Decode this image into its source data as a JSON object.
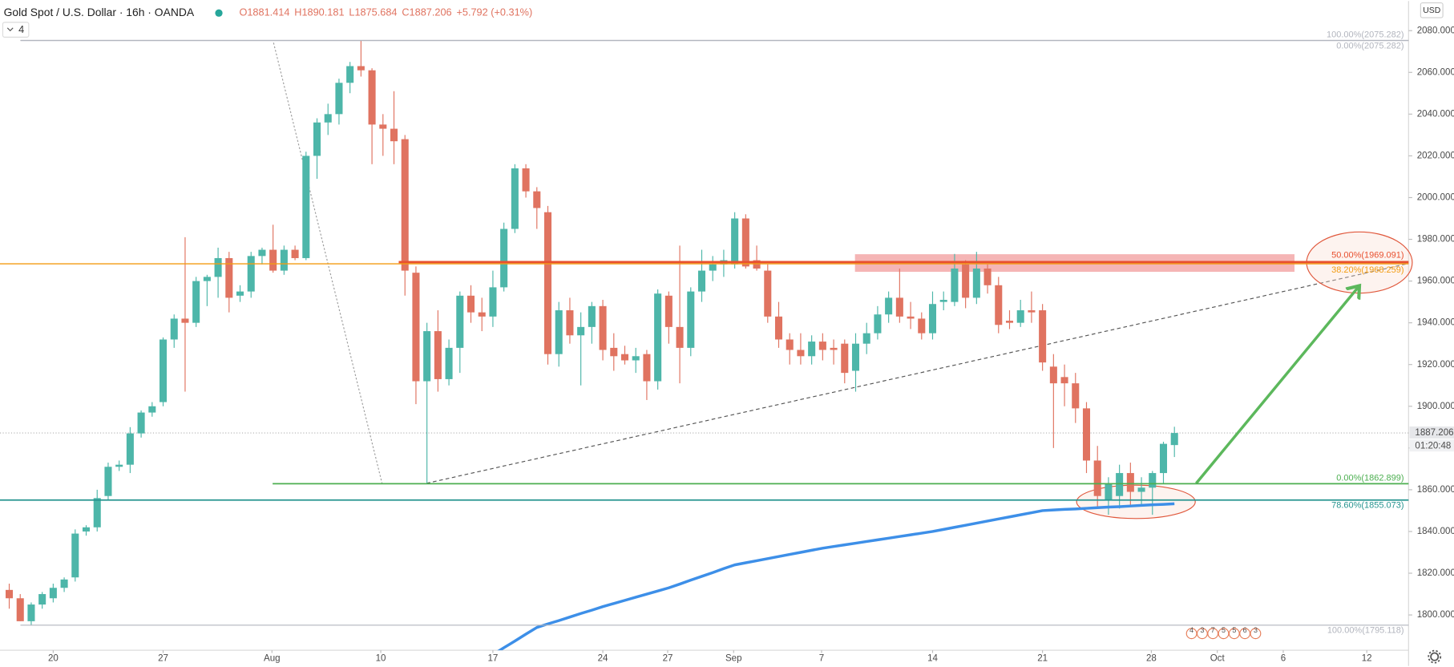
{
  "header": {
    "symbol": "Gold Spot / U.S. Dollar · 16h · OANDA",
    "ohlc": [
      "O1881.414",
      "H1890.181",
      "L1875.684",
      "C1887.206",
      "+5.792 (+0.31%)"
    ],
    "indicators": "4",
    "currency": "USD",
    "countdown": "01:20:48"
  },
  "chart_data": {
    "type": "candlestick",
    "up_color": "#4db6a9",
    "down_color": "#e07360",
    "xlim": [
      -0.84,
      127.3
    ],
    "ylim": [
      1783.1,
      2094.2
    ],
    "grid": false,
    "xticks": [
      {
        "value": 4,
        "label": "20"
      },
      {
        "value": 14,
        "label": "27"
      },
      {
        "value": 23.9,
        "label": "Aug"
      },
      {
        "value": 33.8,
        "label": "10"
      },
      {
        "value": 44,
        "label": "17"
      },
      {
        "value": 54,
        "label": "24"
      },
      {
        "value": 59.9,
        "label": "27"
      },
      {
        "value": 65.9,
        "label": "Sep"
      },
      {
        "value": 73.9,
        "label": "7"
      },
      {
        "value": 84,
        "label": "14"
      },
      {
        "value": 94,
        "label": "21"
      },
      {
        "value": 103.9,
        "label": "28"
      },
      {
        "value": 109.9,
        "label": "Oct"
      },
      {
        "value": 115.9,
        "label": "6"
      },
      {
        "value": 123.5,
        "label": "12"
      }
    ],
    "yticks": [
      {
        "value": 1800,
        "label": "1800.000"
      },
      {
        "value": 1820,
        "label": "1820.000"
      },
      {
        "value": 1840,
        "label": "1840.000"
      },
      {
        "value": 1860,
        "label": "1860.000"
      },
      {
        "value": 1880,
        "label": "1880.000"
      },
      {
        "value": 1900,
        "label": "1900.000"
      },
      {
        "value": 1920,
        "label": "1920.000"
      },
      {
        "value": 1940,
        "label": "1940.000"
      },
      {
        "value": 1960,
        "label": "1960.000"
      },
      {
        "value": 1980,
        "label": "1980.000"
      },
      {
        "value": 2000,
        "label": "2000.000"
      },
      {
        "value": 2020,
        "label": "2020.000"
      },
      {
        "value": 2040,
        "label": "2040.000"
      },
      {
        "value": 2060,
        "label": "2060.000"
      },
      {
        "value": 2080,
        "label": "2080.000"
      }
    ],
    "open": [
      1812,
      1808,
      1797,
      1805,
      1808,
      1813,
      1818,
      1840,
      1842,
      1857,
      1871,
      1872,
      1887,
      1897,
      1902,
      1932,
      1942,
      1940,
      1960,
      1962,
      1971,
      1953,
      1955,
      1972,
      1975,
      1965,
      1975,
      1971,
      2020,
      2036,
      2040,
      2055,
      2063,
      2061,
      2035,
      2033,
      2028,
      1964,
      1912,
      1936,
      1913,
      1928,
      1953,
      1945,
      1943,
      1957,
      1985,
      2014,
      2003,
      1993,
      1925,
      1946,
      1934,
      1938,
      1948,
      1928,
      1925,
      1922,
      1925,
      1912,
      1953,
      1938,
      1928,
      1955,
      1965,
      1968,
      1968,
      1990,
      1970,
      1965,
      1943,
      1932,
      1927,
      1924,
      1931,
      1928,
      1930,
      1917,
      1930,
      1935,
      1944,
      1952,
      1943,
      1942,
      1935,
      1950,
      1950,
      1968,
      1952,
      1966,
      1958,
      1941,
      1940,
      1946,
      1946,
      1919,
      1914,
      1911,
      1899,
      1874,
      1855,
      1857,
      1868,
      1859,
      1861,
      1868,
      1881.414
    ],
    "high": [
      1815,
      1810,
      1806,
      1811,
      1815,
      1818,
      1841,
      1843,
      1860,
      1873,
      1874,
      1890,
      1898,
      1902,
      1933,
      1944,
      1981,
      1962,
      1963,
      1976,
      1974,
      1958,
      1974,
      1976,
      1987,
      1977,
      1977,
      2022,
      2038,
      2045,
      2057,
      2065,
      2075.3,
      2062,
      2040,
      2051,
      2030,
      1967,
      1940,
      1946,
      1932,
      1955,
      1958,
      1952,
      1965,
      1988,
      2016,
      2016,
      2005,
      1996,
      1950,
      1952,
      1945,
      1950,
      1951,
      1935,
      1929,
      1928,
      1927,
      1956,
      1955,
      1977,
      1957,
      1975,
      1972,
      1975,
      1993,
      1992,
      1977,
      1968,
      1950,
      1935,
      1935,
      1934,
      1935,
      1932,
      1932,
      1935,
      1940,
      1948,
      1955,
      1966,
      1950,
      1945,
      1955,
      1955,
      1973,
      1970,
      1974,
      1968,
      1962,
      1946,
      1951,
      1955,
      1949,
      1925,
      1920,
      1916,
      1902,
      1881,
      1866,
      1872,
      1873,
      1866,
      1869,
      1883,
      1890.181
    ],
    "low": [
      1803,
      1797,
      1795,
      1803,
      1806,
      1811,
      1816,
      1838,
      1840,
      1855,
      1869,
      1868,
      1885,
      1895,
      1900,
      1928,
      1907,
      1938,
      1948,
      1952,
      1945,
      1950,
      1952,
      1968,
      1964,
      1963,
      1970,
      1970,
      2009,
      2030,
      2035,
      2050,
      2058,
      2016,
      2020,
      2016,
      1953,
      1901,
      1862.9,
      1907,
      1910,
      1916,
      1940,
      1936,
      1938,
      1955,
      1983,
      2000,
      1985,
      1920,
      1919,
      1930,
      1910,
      1930,
      1922,
      1917,
      1920,
      1916,
      1903,
      1908,
      1930,
      1911,
      1924,
      1950,
      1960,
      1962,
      1966,
      1966,
      1965,
      1940,
      1928,
      1920,
      1920,
      1920,
      1922,
      1920,
      1911,
      1907,
      1925,
      1932,
      1940,
      1940,
      1937,
      1932,
      1932,
      1946,
      1948,
      1947,
      1949,
      1954,
      1935,
      1937,
      1938,
      1940,
      1917,
      1880,
      1900,
      1892,
      1868,
      1851,
      1848,
      1851,
      1852,
      1853,
      1848,
      1863,
      1875.684
    ],
    "close": [
      1808,
      1797,
      1805,
      1810,
      1813,
      1817,
      1839,
      1842,
      1856,
      1871,
      1872,
      1887,
      1897,
      1900,
      1932,
      1942,
      1940,
      1960,
      1962,
      1971,
      1952,
      1955,
      1972,
      1975,
      1965,
      1975,
      1971,
      2020,
      2036,
      2040,
      2055,
      2063,
      2061,
      2035,
      2033,
      2027,
      1965,
      1912,
      1936,
      1913,
      1928,
      1953,
      1945,
      1943,
      1957,
      1985,
      2014,
      2003,
      1995,
      1925,
      1946,
      1934,
      1938,
      1948,
      1927,
      1924,
      1922,
      1924,
      1912,
      1954,
      1938,
      1928,
      1955,
      1965,
      1968,
      1970,
      1990,
      1967,
      1966,
      1943,
      1932,
      1927,
      1924,
      1931,
      1927,
      1927,
      1916,
      1930,
      1935,
      1944,
      1952,
      1943,
      1942,
      1935,
      1949,
      1951,
      1966,
      1952,
      1966,
      1958,
      1939,
      1940,
      1946,
      1945,
      1921,
      1911,
      1911,
      1899,
      1874,
      1857,
      1863,
      1868,
      1859,
      1861,
      1868,
      1882,
      1887.206
    ],
    "ma": {
      "color": "#3d8fe8",
      "values": [
        null,
        null,
        null,
        null,
        null,
        null,
        null,
        null,
        null,
        null,
        null,
        null,
        null,
        null,
        null,
        null,
        null,
        null,
        null,
        null,
        null,
        null,
        null,
        null,
        null,
        null,
        null,
        null,
        null,
        null,
        null,
        null,
        null,
        null,
        null,
        null,
        null,
        null,
        null,
        null,
        null,
        null,
        null,
        null,
        1781,
        1784.3,
        1787.5,
        1790.8,
        1794,
        1795.7,
        1797.3,
        1799,
        1800.7,
        1802.3,
        1804,
        1805.5,
        1807,
        1808.5,
        1810,
        1811.5,
        1813,
        1814.8,
        1816.7,
        1818.5,
        1820.3,
        1822.2,
        1824,
        1825,
        1826,
        1827,
        1828,
        1829,
        1830,
        1831,
        1832,
        1832.8,
        1833.6,
        1834.4,
        1835.2,
        1836,
        1836.8,
        1837.6,
        1838.4,
        1839.2,
        1840,
        1841,
        1842,
        1843,
        1844,
        1845,
        1846,
        1847,
        1848,
        1849,
        1850,
        1850.3,
        1850.6,
        1850.8,
        1851.1,
        1851.4,
        1851.7,
        1851.9,
        1852.2,
        1852.5,
        1852.8,
        1853,
        1853.3
      ]
    },
    "last_price": 1887.206,
    "levels": [
      {
        "label": "100.00%(2075.282)",
        "value": 2075.282,
        "color": "#b2b5be"
      },
      {
        "label": "0.00%(2075.282)",
        "value": 2075.282,
        "color": "#b2b5be"
      },
      {
        "label": "50.00%(1969.091)",
        "value": 1969.091,
        "color": "#e8502f"
      },
      {
        "label": "38.20%(1968.259)",
        "value": 1968.259,
        "color": "#f39c12"
      },
      {
        "label": "0.00%(1862.899)",
        "value": 1862.899,
        "color": "#4caf50"
      },
      {
        "label": "78.60%(1855.073)",
        "value": 1855.073,
        "color": "#26948f"
      },
      {
        "label": "100.00%(1795.118)",
        "value": 1795.118,
        "color": "#b2b5be"
      }
    ],
    "events": [
      "4",
      "3",
      "7",
      "5",
      "5",
      "6",
      "3"
    ]
  }
}
